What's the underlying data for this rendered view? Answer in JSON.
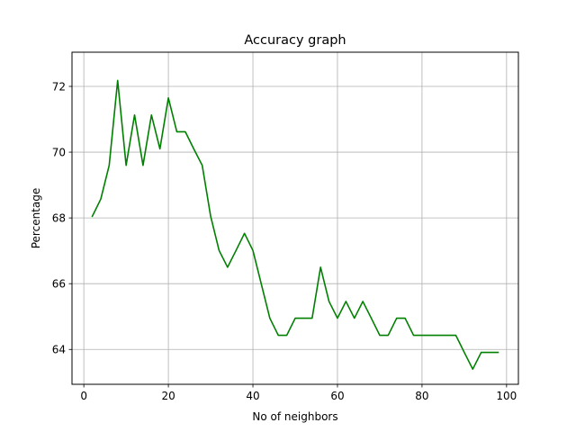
{
  "chart_data": {
    "type": "line",
    "title": "Accuracy graph",
    "xlabel": "No of neighbors",
    "ylabel": "Percentage",
    "xlim": [
      -2.8,
      102.8
    ],
    "ylim": [
      62.94,
      73.04
    ],
    "xticks": [
      0,
      20,
      40,
      60,
      80,
      100
    ],
    "yticks": [
      64,
      66,
      68,
      70,
      72
    ],
    "grid": true,
    "series": [
      {
        "color": "#008000",
        "x": [
          2,
          4,
          6,
          8,
          10,
          12,
          14,
          16,
          18,
          20,
          22,
          24,
          26,
          28,
          30,
          32,
          34,
          36,
          38,
          40,
          42,
          44,
          46,
          48,
          50,
          52,
          54,
          56,
          58,
          60,
          62,
          64,
          66,
          68,
          70,
          72,
          74,
          76,
          78,
          80,
          82,
          84,
          86,
          88,
          90,
          92,
          94,
          96,
          98
        ],
        "y": [
          68.05,
          68.57,
          69.6,
          72.18,
          69.6,
          71.13,
          69.6,
          71.13,
          70.1,
          71.65,
          70.62,
          70.62,
          70.1,
          69.6,
          68.05,
          67.01,
          66.5,
          67.01,
          67.53,
          67.01,
          65.98,
          64.95,
          64.43,
          64.43,
          64.95,
          64.95,
          64.95,
          66.5,
          65.46,
          64.95,
          65.46,
          64.95,
          65.46,
          64.95,
          64.43,
          64.43,
          64.95,
          64.95,
          64.43,
          64.43,
          64.43,
          64.43,
          64.43,
          64.43,
          63.91,
          63.4,
          63.91,
          63.91,
          63.91
        ]
      }
    ]
  }
}
